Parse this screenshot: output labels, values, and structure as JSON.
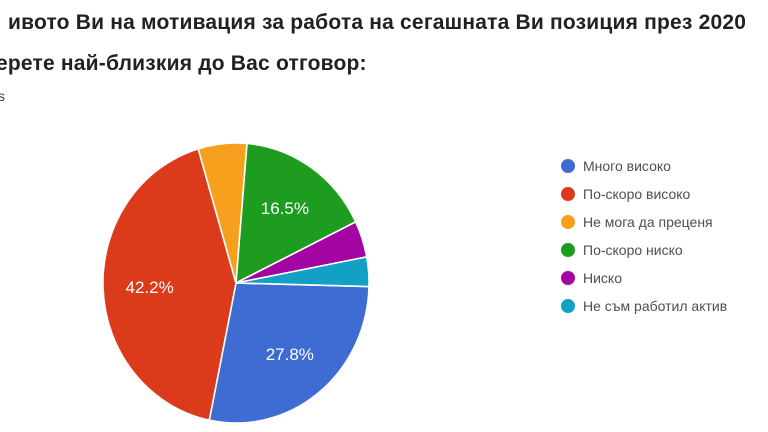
{
  "header": {
    "title_line1": "ивото Ви на мотивация за работа на сегашната Ви позиция през 2020",
    "title_line2": "ерете най-близкия до Вас отговор:",
    "responses_fragment": "s"
  },
  "chart_data": {
    "type": "pie",
    "direction": "clockwise",
    "start_angle": "east",
    "legend_position": "right",
    "slices": [
      {
        "label": "Много високо",
        "percent": 27.8,
        "pct_label": "27.8%",
        "color": "#3E6CD3",
        "label_visible": true
      },
      {
        "label": "По-скоро високо",
        "percent": 42.2,
        "pct_label": "42.2%",
        "color": "#DB3A1B",
        "label_visible": true
      },
      {
        "label": "Не мога да преценя",
        "percent": 5.9,
        "pct_label": "",
        "color": "#F7A01D",
        "label_visible": false
      },
      {
        "label": "По-скоро ниско",
        "percent": 16.5,
        "pct_label": "16.5%",
        "color": "#1E9C1F",
        "label_visible": true
      },
      {
        "label": "Ниско",
        "percent": 4.2,
        "pct_label": "",
        "color": "#A305A3",
        "label_visible": false
      },
      {
        "label": "Не съм работил актив",
        "percent": 3.4,
        "pct_label": "",
        "color": "#12A0C4",
        "label_visible": false
      }
    ]
  }
}
